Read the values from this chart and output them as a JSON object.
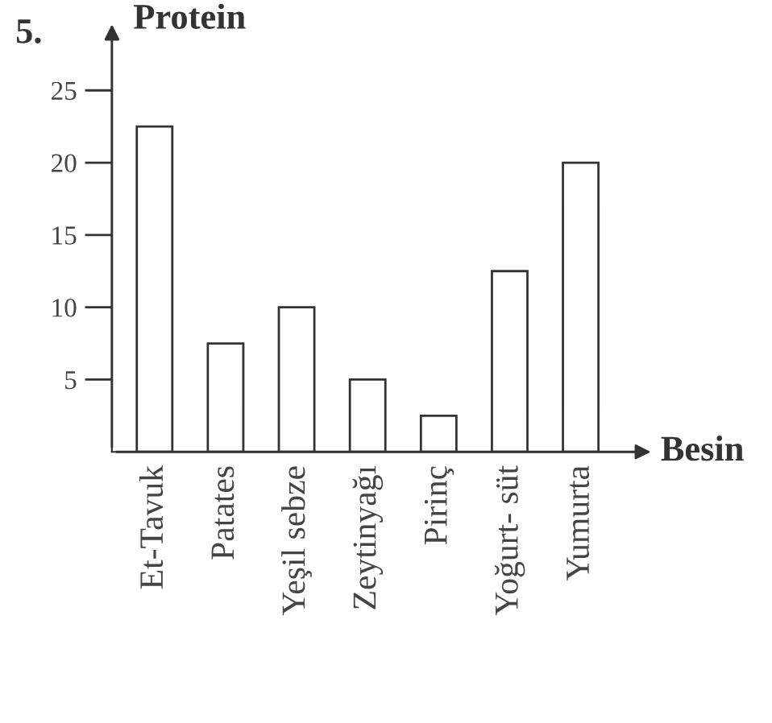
{
  "chart_data": {
    "type": "bar",
    "xlabel": "Besin",
    "ylabel": "Protein",
    "annotations": [
      "5."
    ],
    "categories": [
      "Et-Tavuk",
      "Patates",
      "Yeşil sebze",
      "Zeytinyağı",
      "Pirinç",
      "Yoğurt- süt",
      "Yumurta"
    ],
    "values": [
      22.5,
      7.5,
      10,
      5,
      2.5,
      12.5,
      20
    ],
    "color": "#ffffff",
    "ylim": [
      0,
      29
    ],
    "yticks": [
      5,
      10,
      15,
      20,
      25
    ],
    "grid": false
  }
}
